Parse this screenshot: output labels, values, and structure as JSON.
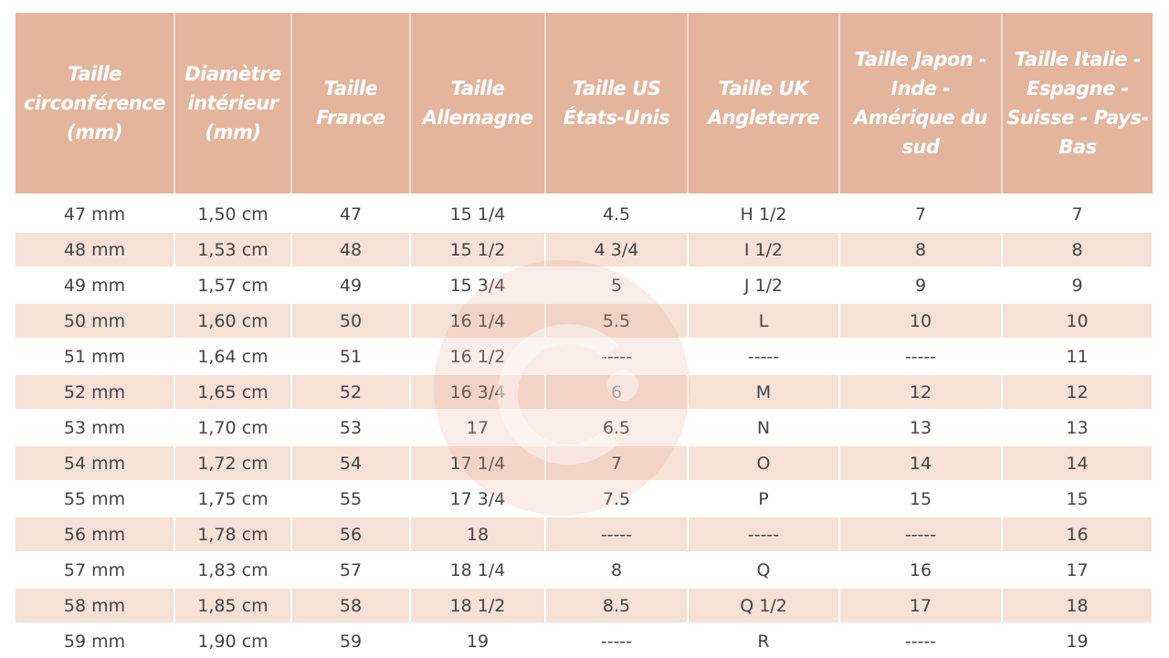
{
  "table": {
    "headers": [
      "Taille circonférence (mm)",
      "Diamètre intérieur (mm)",
      "Taille France",
      "Taille Allemagne",
      "Taille US États-Unis",
      "Taille UK Angleterre",
      "Taille Japon - Inde - Amérique du sud",
      "Taille Italie - Espagne - Suisse - Pays-Bas"
    ],
    "rows": [
      [
        "47 mm",
        "1,50 cm",
        "47",
        "15 1/4",
        "4.5",
        "H 1/2",
        "7",
        "7"
      ],
      [
        "48 mm",
        "1,53 cm",
        "48",
        "15 1/2",
        "4 3/4",
        "I 1/2",
        "8",
        "8"
      ],
      [
        "49 mm",
        "1,57 cm",
        "49",
        "15 3/4",
        "5",
        "J 1/2",
        "9",
        "9"
      ],
      [
        "50 mm",
        "1,60 cm",
        "50",
        "16 1/4",
        "5.5",
        "L",
        "10",
        "10"
      ],
      [
        "51 mm",
        "1,64 cm",
        "51",
        "16 1/2",
        "-----",
        "-----",
        "-----",
        "11"
      ],
      [
        "52 mm",
        "1,65 cm",
        "52",
        "16 3/4",
        "6",
        "M",
        "12",
        "12"
      ],
      [
        "53 mm",
        "1,70 cm",
        "53",
        "17",
        "6.5",
        "N",
        "13",
        "13"
      ],
      [
        "54 mm",
        "1,72 cm",
        "54",
        "17 1/4",
        "7",
        "O",
        "14",
        "14"
      ],
      [
        "55 mm",
        "1,75 cm",
        "55",
        "17 3/4",
        "7.5",
        "P",
        "15",
        "15"
      ],
      [
        "56 mm",
        "1,78 cm",
        "56",
        "18",
        "-----",
        "-----",
        "-----",
        "16"
      ],
      [
        "57 mm",
        "1,83 cm",
        "57",
        "18 1/4",
        "8",
        "Q",
        "16",
        "17"
      ],
      [
        "58 mm",
        "1,85 cm",
        "58",
        "18 1/2",
        "8.5",
        "Q 1/2",
        "17",
        "18"
      ],
      [
        "59 mm",
        "1,90 cm",
        "59",
        "19",
        "-----",
        "R",
        "-----",
        "19"
      ]
    ]
  },
  "colors": {
    "header": "#e3b59d",
    "stripe": "#f5e1d6"
  },
  "watermark": {
    "icon": "g-logo-icon"
  }
}
